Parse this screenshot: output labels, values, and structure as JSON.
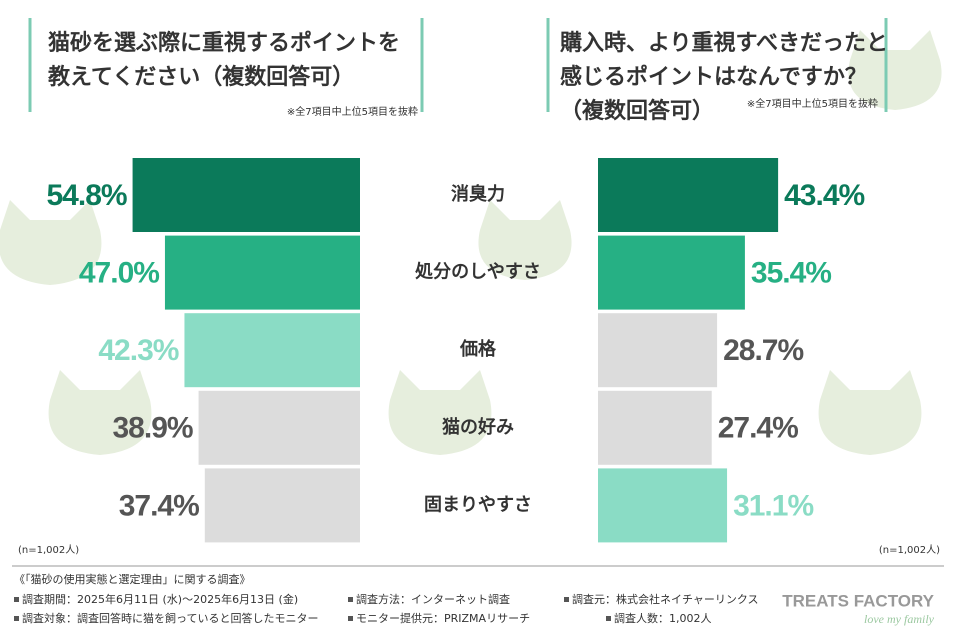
{
  "categories": [
    "消臭力",
    "処分のしやすさ",
    "価格",
    "猫の好み",
    "固まりやすさ"
  ],
  "chart_data": [
    {
      "type": "hbar",
      "direction": "left",
      "title": [
        "猫砂を選ぶ際に重視するポイントを",
        "教えてください（複数回答可）"
      ],
      "note": "※全7項目中上位5項目を抜粋",
      "values": [
        54.8,
        47.0,
        42.3,
        38.9,
        37.4
      ],
      "value_labels": [
        "54.8%",
        "47.0%",
        "42.3%",
        "38.9%",
        "37.4%"
      ],
      "colors": [
        "#0b7a5a",
        "#26b084",
        "#8adcc5",
        "#dcdcdc",
        "#dcdcdc"
      ],
      "label_colors": [
        "#0b7a5a",
        "#26b084",
        "#8adcc5",
        "#555555",
        "#555555"
      ],
      "n_label": "(n=1,002人)"
    },
    {
      "type": "hbar",
      "direction": "right",
      "title": [
        "購入時、より重視すべきだったと",
        "感じるポイントはなんですか？",
        "（複数回答可）"
      ],
      "note": "※全7項目中上位5項目を抜粋",
      "values": [
        43.4,
        35.4,
        28.7,
        27.4,
        31.1
      ],
      "value_labels": [
        "43.4%",
        "35.4%",
        "28.7%",
        "27.4%",
        "31.1%"
      ],
      "colors": [
        "#0b7a5a",
        "#26b084",
        "#dcdcdc",
        "#dcdcdc",
        "#8adcc5"
      ],
      "label_colors": [
        "#0b7a5a",
        "#26b084",
        "#555555",
        "#555555",
        "#8adcc5"
      ],
      "n_label": "(n=1,002人)"
    }
  ],
  "footer": {
    "heading": "《「猫砂の使用実態と選定理由」に関する調査》",
    "items": [
      "調査期間：2025年6月11日 (水)〜2025年6月13日 (金)",
      "調査方法：インターネット調査",
      "調査元：株式会社ネイチャーリンクス",
      "調査対象：調査回答時に猫を飼っていると回答したモニター",
      "モニター提供元：PRIZMAリサーチ",
      "調査人数：1,002人"
    ],
    "logo": "TREATS FACTORY",
    "tagline": "love my family"
  }
}
